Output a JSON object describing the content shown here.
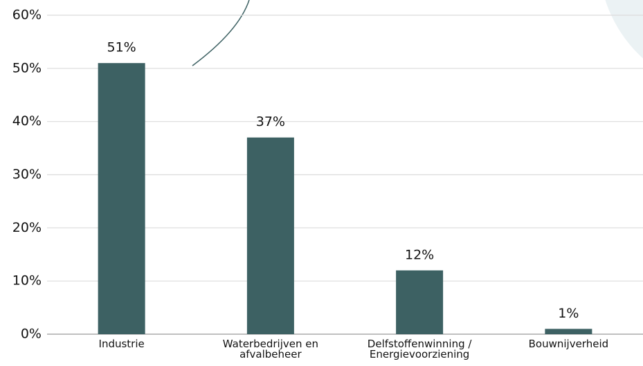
{
  "chart_data": {
    "type": "bar",
    "categories": [
      "Industrie",
      "Waterbedrijven en\nafvalbeheer",
      "Delfstoffenwinning /\nEnergievoorziening",
      "Bouwnijverheid"
    ],
    "values": [
      51,
      37,
      12,
      1
    ],
    "value_labels": [
      "51%",
      "37%",
      "12%",
      "1%"
    ],
    "color": "#3d6163",
    "ylim": [
      0,
      60
    ],
    "yticks": [
      {
        "value": 0,
        "label": "0%"
      },
      {
        "value": 10,
        "label": "10%"
      },
      {
        "value": 20,
        "label": "20%"
      },
      {
        "value": 30,
        "label": "30%"
      },
      {
        "value": 40,
        "label": "40%"
      },
      {
        "value": 50,
        "label": "50%"
      },
      {
        "value": 60,
        "label": "60%"
      }
    ],
    "grid": true
  }
}
